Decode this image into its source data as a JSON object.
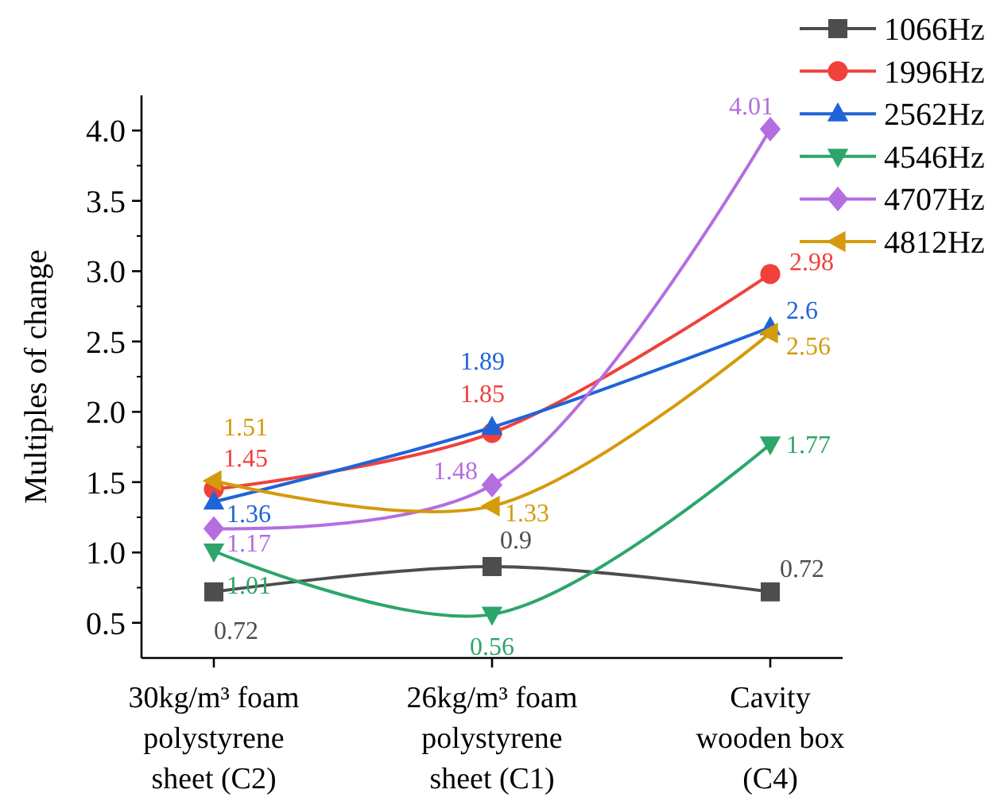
{
  "chart_data": {
    "type": "line",
    "ylabel": "Multiples of change",
    "categories": [
      "30kg/m³ foam polystyrene sheet (C2)",
      "26kg/m³ foam polystyrene sheet (C1)",
      "Cavity wooden box (C4)"
    ],
    "ylim": [
      0.25,
      4.25
    ],
    "yticks": [
      0.5,
      {
        "value": 1,
        "label": "1.0"
      },
      1.5,
      {
        "value": 2,
        "label": "2.0"
      },
      2.5,
      {
        "value": 3,
        "label": "3.0"
      },
      3.5,
      {
        "value": 4,
        "label": "4.0"
      }
    ],
    "legend": "top right",
    "data_labels": true,
    "grid": false,
    "line_style": "solid",
    "series": [
      {
        "name": "1066Hz",
        "color": "#4d4d4d",
        "marker": "square",
        "values": [
          0.72,
          0.9,
          0.72
        ]
      },
      {
        "name": "1996Hz",
        "color": "#f0413b",
        "marker": "circle",
        "values": [
          1.45,
          1.85,
          2.98
        ]
      },
      {
        "name": "2562Hz",
        "color": "#1f64d8",
        "marker": "triangle",
        "values": [
          1.36,
          1.89,
          2.6
        ]
      },
      {
        "name": "4546Hz",
        "color": "#2ca66a",
        "marker": "triangle-down",
        "values": [
          1.01,
          0.56,
          1.77
        ]
      },
      {
        "name": "4707Hz",
        "color": "#b46ee0",
        "marker": "diamond",
        "values": [
          1.17,
          1.48,
          4.01
        ]
      },
      {
        "name": "4812Hz",
        "color": "#d49b0b",
        "marker": "triangle-left",
        "values": [
          1.51,
          1.33,
          2.56
        ]
      }
    ]
  }
}
